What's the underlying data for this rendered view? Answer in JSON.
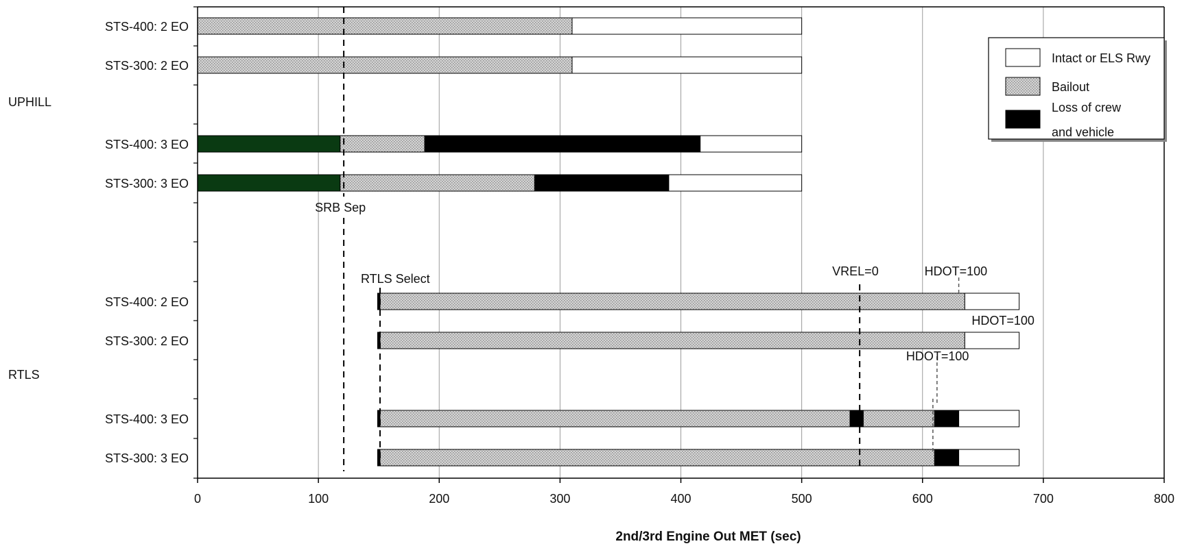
{
  "chart_data": {
    "type": "bar",
    "subtype": "stacked-horizontal-timeline",
    "xlabel": "2nd/3rd Engine Out MET (sec)",
    "xlim": [
      0,
      800
    ],
    "xticks": [
      "0",
      "100",
      "200",
      "300",
      "400",
      "500",
      "600",
      "700",
      "800"
    ],
    "grid": true,
    "legend_position": "top-right",
    "colors": {
      "intact": "#ffffff",
      "bailout": "#c9c9c9",
      "loss": "#000000",
      "nominal": "#0a3a12"
    },
    "legend": [
      {
        "key": "intact",
        "lines": [
          "Intact or ELS Rwy"
        ]
      },
      {
        "key": "bailout",
        "lines": [
          "Bailout"
        ]
      },
      {
        "key": "loss",
        "lines": [
          "Loss of crew",
          "and vehicle"
        ]
      }
    ],
    "groups": [
      {
        "label": "UPHILL",
        "rows": [
          {
            "label": "STS-400: 2 EO",
            "segments": [
              {
                "type": "bailout",
                "start": 0,
                "end": 310
              },
              {
                "type": "intact",
                "start": 310,
                "end": 500
              }
            ]
          },
          {
            "label": "STS-300: 2 EO",
            "segments": [
              {
                "type": "bailout",
                "start": 0,
                "end": 310
              },
              {
                "type": "intact",
                "start": 310,
                "end": 500
              }
            ]
          },
          {
            "label": "STS-400: 3 EO",
            "segments": [
              {
                "type": "nominal",
                "start": 0,
                "end": 118
              },
              {
                "type": "bailout",
                "start": 118,
                "end": 188
              },
              {
                "type": "loss",
                "start": 188,
                "end": 416
              },
              {
                "type": "intact",
                "start": 416,
                "end": 500
              }
            ]
          },
          {
            "label": "STS-300: 3 EO",
            "segments": [
              {
                "type": "nominal",
                "start": 0,
                "end": 118
              },
              {
                "type": "bailout",
                "start": 118,
                "end": 279
              },
              {
                "type": "loss",
                "start": 279,
                "end": 390
              },
              {
                "type": "intact",
                "start": 390,
                "end": 500
              }
            ]
          }
        ]
      },
      {
        "label": "RTLS",
        "rows": [
          {
            "label": "STS-400: 2 EO",
            "segments": [
              {
                "type": "loss",
                "start": 149,
                "end": 151
              },
              {
                "type": "bailout",
                "start": 151,
                "end": 635
              },
              {
                "type": "intact",
                "start": 635,
                "end": 680
              }
            ]
          },
          {
            "label": "STS-300: 2 EO",
            "segments": [
              {
                "type": "loss",
                "start": 149,
                "end": 151
              },
              {
                "type": "bailout",
                "start": 151,
                "end": 635
              },
              {
                "type": "intact",
                "start": 635,
                "end": 680
              }
            ]
          },
          {
            "label": "STS-400: 3 EO",
            "segments": [
              {
                "type": "loss",
                "start": 149,
                "end": 151
              },
              {
                "type": "bailout",
                "start": 151,
                "end": 540
              },
              {
                "type": "loss",
                "start": 540,
                "end": 551
              },
              {
                "type": "bailout",
                "start": 551,
                "end": 610
              },
              {
                "type": "loss",
                "start": 610,
                "end": 630
              },
              {
                "type": "intact",
                "start": 630,
                "end": 680
              }
            ]
          },
          {
            "label": "STS-300: 3 EO",
            "segments": [
              {
                "type": "loss",
                "start": 149,
                "end": 151
              },
              {
                "type": "bailout",
                "start": 151,
                "end": 610
              },
              {
                "type": "loss",
                "start": 610,
                "end": 630
              },
              {
                "type": "intact",
                "start": 630,
                "end": 680
              }
            ]
          }
        ]
      }
    ],
    "annotations": [
      {
        "text": "SRB Sep",
        "x": 121
      },
      {
        "text": "RTLS Select",
        "x": 151
      },
      {
        "text": "VREL=0",
        "x": 548
      },
      {
        "text": "HDOT=100",
        "x": 630
      },
      {
        "text": "HDOT=100",
        "x": 635
      },
      {
        "text": "HDOT=100",
        "x": 612
      }
    ]
  }
}
